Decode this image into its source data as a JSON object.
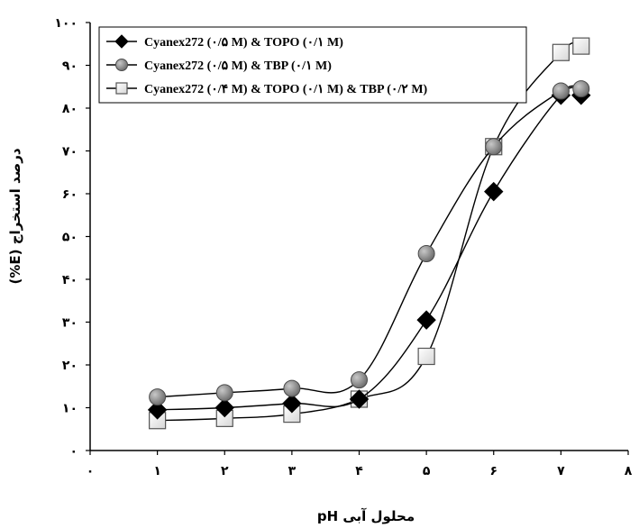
{
  "chart_data": {
    "type": "line",
    "title": "",
    "xlabel": "pH محلول آبی",
    "ylabel": "درصد استخراج (E%)",
    "xlim": [
      0,
      8
    ],
    "ylim": [
      0,
      100
    ],
    "x_ticks": [
      0,
      1,
      2,
      3,
      4,
      5,
      6,
      7,
      8
    ],
    "x_tick_labels": [
      "۰",
      "۱",
      "۲",
      "۳",
      "۴",
      "۵",
      "۶",
      "۷",
      "۸"
    ],
    "y_ticks": [
      0,
      10,
      20,
      30,
      40,
      50,
      60,
      70,
      80,
      90,
      100
    ],
    "y_tick_labels": [
      "۰",
      "۱۰",
      "۲۰",
      "۳۰",
      "۴۰",
      "۵۰",
      "۶۰",
      "۷۰",
      "۸۰",
      "۹۰",
      "۱۰۰"
    ],
    "grid": false,
    "legend_position": "top-left",
    "series": [
      {
        "name": "Cyanex272 (۰/۵ M) & TOPO (۰/۱ M)",
        "marker": "diamond",
        "color": "#000000",
        "x": [
          1,
          2,
          3,
          4,
          5,
          6,
          7,
          7.3
        ],
        "y": [
          9.5,
          10,
          11,
          12,
          30.5,
          60.5,
          83,
          83
        ]
      },
      {
        "name": "Cyanex272 (۰/۵ M) & TBP (۰/۱ M)",
        "marker": "circle",
        "color": "#808080",
        "x": [
          1,
          2,
          3,
          4,
          5,
          6,
          7,
          7.3
        ],
        "y": [
          12.5,
          13.5,
          14.5,
          16.5,
          46,
          71,
          84,
          84.5
        ]
      },
      {
        "name": "Cyanex272 (۰/۴ M) & TOPO (۰/۱ M) & TBP (۰/۲ M)",
        "marker": "square",
        "color": "#ffffff",
        "x": [
          1,
          2,
          3,
          4,
          5,
          6,
          7,
          7.3
        ],
        "y": [
          7,
          7.5,
          8.5,
          12,
          22,
          71,
          93,
          94.5
        ]
      }
    ]
  }
}
